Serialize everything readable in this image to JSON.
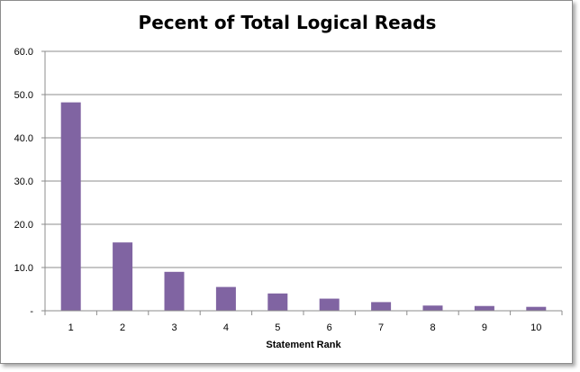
{
  "chart_data": {
    "type": "bar",
    "title": "Pecent of Total Logical Reads",
    "xlabel": "Statement Rank",
    "ylabel": "",
    "categories": [
      "1",
      "2",
      "3",
      "4",
      "5",
      "6",
      "7",
      "8",
      "9",
      "10"
    ],
    "values": [
      48.2,
      15.8,
      9.0,
      5.5,
      4.0,
      2.8,
      2.0,
      1.2,
      1.1,
      0.9
    ],
    "ylim": [
      0,
      60
    ],
    "yticks": [
      "-",
      "10.0",
      "20.0",
      "30.0",
      "40.0",
      "50.0",
      "60.0"
    ],
    "grid": true,
    "legend": "none",
    "bar_color": "#8064a2",
    "grid_color": "#8c8c8c"
  }
}
